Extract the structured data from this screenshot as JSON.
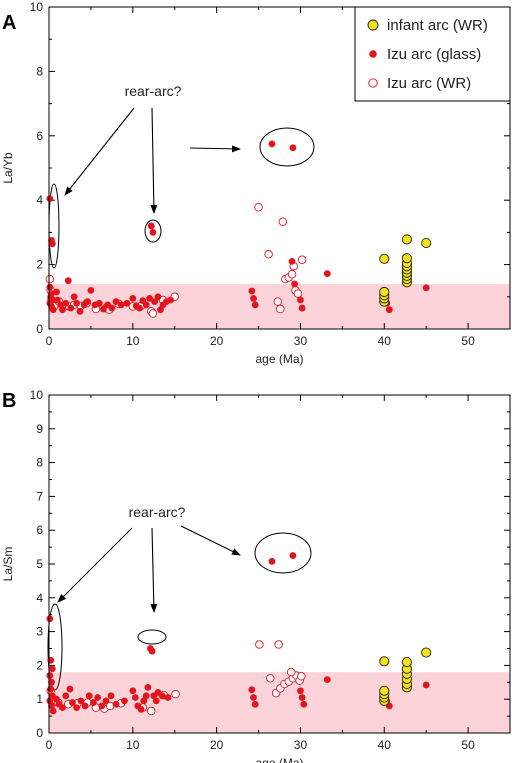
{
  "chart_data": [
    {
      "panel_label": "A",
      "type": "scatter",
      "xlabel": "age (Ma)",
      "ylabel": "La/Yb",
      "xlim": [
        0,
        55
      ],
      "ylim": [
        0,
        10
      ],
      "xticks": [
        0,
        10,
        20,
        30,
        40,
        50
      ],
      "yticks": [
        0,
        2,
        4,
        6,
        8,
        10
      ],
      "shaded_band": [
        0,
        1.4
      ],
      "legend": {
        "position": "top-right",
        "entries": [
          {
            "label": "infant arc (WR)",
            "marker": "circle-yellow"
          },
          {
            "label": "Izu arc (glass)",
            "marker": "dot-red"
          },
          {
            "label": "Izu arc (WR)",
            "marker": "circle-open-red"
          }
        ]
      },
      "annotation": "rear-arc?",
      "series": [
        {
          "name": "infant arc (WR)",
          "points": [
            [
              40,
              0.85
            ],
            [
              40,
              0.95
            ],
            [
              40,
              1.05
            ],
            [
              40,
              1.15
            ],
            [
              40,
              2.18
            ],
            [
              42.7,
              1.45
            ],
            [
              42.7,
              1.55
            ],
            [
              42.7,
              1.65
            ],
            [
              42.7,
              1.75
            ],
            [
              42.7,
              1.85
            ],
            [
              42.7,
              1.95
            ],
            [
              42.7,
              2.05
            ],
            [
              42.7,
              2.2
            ],
            [
              42.7,
              2.78
            ],
            [
              45,
              2.67
            ]
          ]
        },
        {
          "name": "Izu arc (glass)",
          "points": [
            [
              0.1,
              4.05
            ],
            [
              0.3,
              2.75
            ],
            [
              0.4,
              2.65
            ],
            [
              0.1,
              1.3
            ],
            [
              0.3,
              1.1
            ],
            [
              0.2,
              1.0
            ],
            [
              0.4,
              0.9
            ],
            [
              0.1,
              0.8
            ],
            [
              0.3,
              0.7
            ],
            [
              0.5,
              0.6
            ],
            [
              0.9,
              1.15
            ],
            [
              1.0,
              0.9
            ],
            [
              1.4,
              0.75
            ],
            [
              1.6,
              0.6
            ],
            [
              2,
              0.8
            ],
            [
              2.3,
              1.5
            ],
            [
              2.6,
              0.65
            ],
            [
              3,
              1.0
            ],
            [
              3.3,
              0.8
            ],
            [
              3.7,
              0.55
            ],
            [
              4.2,
              0.75
            ],
            [
              4.6,
              0.85
            ],
            [
              5,
              1.2
            ],
            [
              5.5,
              0.75
            ],
            [
              6,
              0.8
            ],
            [
              6.5,
              0.62
            ],
            [
              7,
              0.75
            ],
            [
              7.5,
              0.65
            ],
            [
              8,
              0.85
            ],
            [
              8.6,
              0.75
            ],
            [
              9.3,
              0.8
            ],
            [
              10,
              0.95
            ],
            [
              10.4,
              0.72
            ],
            [
              10.8,
              0.65
            ],
            [
              11.2,
              0.88
            ],
            [
              11.6,
              0.75
            ],
            [
              12,
              0.95
            ],
            [
              12.2,
              3.2
            ],
            [
              12.4,
              3.0
            ],
            [
              12.6,
              0.85
            ],
            [
              13,
              1.0
            ],
            [
              13.3,
              0.6
            ],
            [
              13.6,
              0.75
            ],
            [
              14,
              0.85
            ],
            [
              14.5,
              0.9
            ],
            [
              24.2,
              1.18
            ],
            [
              24.4,
              0.95
            ],
            [
              24.6,
              0.75
            ],
            [
              26.6,
              5.75
            ],
            [
              29.1,
              5.63
            ],
            [
              29,
              2.1
            ],
            [
              29.3,
              1.4
            ],
            [
              30,
              0.9
            ],
            [
              30.2,
              0.65
            ],
            [
              33.2,
              1.72
            ],
            [
              40.3,
              0.8
            ],
            [
              40.6,
              0.6
            ],
            [
              45,
              1.28
            ]
          ]
        },
        {
          "name": "Izu arc (WR)",
          "points": [
            [
              0.1,
              1.55
            ],
            [
              0.2,
              1.2
            ],
            [
              0.3,
              0.9
            ],
            [
              0.6,
              0.7
            ],
            [
              1.2,
              0.85
            ],
            [
              2.4,
              0.7
            ],
            [
              3,
              0.75
            ],
            [
              3.8,
              0.72
            ],
            [
              4.5,
              0.8
            ],
            [
              5.6,
              0.62
            ],
            [
              6.8,
              0.65
            ],
            [
              7.2,
              0.6
            ],
            [
              8.3,
              0.78
            ],
            [
              10,
              0.7
            ],
            [
              11,
              0.72
            ],
            [
              12.2,
              0.55
            ],
            [
              12.4,
              0.48
            ],
            [
              13.6,
              0.9
            ],
            [
              15,
              1.0
            ],
            [
              25,
              3.78
            ],
            [
              26.2,
              2.32
            ],
            [
              27.3,
              0.85
            ],
            [
              27.6,
              0.62
            ],
            [
              27.9,
              3.33
            ],
            [
              28.2,
              1.55
            ],
            [
              28.6,
              1.6
            ],
            [
              29,
              1.7
            ],
            [
              29.2,
              1.95
            ],
            [
              29.4,
              1.2
            ],
            [
              29.7,
              1.1
            ],
            [
              30.2,
              2.15
            ]
          ]
        }
      ]
    },
    {
      "panel_label": "B",
      "type": "scatter",
      "xlabel": "age (Ma)",
      "ylabel": "La/Sm",
      "xlim": [
        0,
        55
      ],
      "ylim": [
        0,
        10
      ],
      "xticks": [
        0,
        10,
        20,
        30,
        40,
        50
      ],
      "yticks": [
        0,
        1,
        2,
        3,
        4,
        5,
        6,
        7,
        8,
        9,
        10
      ],
      "shaded_band": [
        0,
        1.8
      ],
      "annotation": "rear-arc?",
      "series": [
        {
          "name": "infant arc (WR)",
          "points": [
            [
              40,
              0.95
            ],
            [
              40,
              1.05
            ],
            [
              40,
              1.15
            ],
            [
              40,
              1.25
            ],
            [
              40,
              2.12
            ],
            [
              42.7,
              1.35
            ],
            [
              42.7,
              1.45
            ],
            [
              42.7,
              1.6
            ],
            [
              42.7,
              1.75
            ],
            [
              42.7,
              1.9
            ],
            [
              42.7,
              2.1
            ],
            [
              45,
              2.38
            ]
          ]
        },
        {
          "name": "Izu arc (glass)",
          "points": [
            [
              0.1,
              3.38
            ],
            [
              0.2,
              2.15
            ],
            [
              0.4,
              1.9
            ],
            [
              0.1,
              1.7
            ],
            [
              0.3,
              1.5
            ],
            [
              0.2,
              1.3
            ],
            [
              0.4,
              1.1
            ],
            [
              0.1,
              0.95
            ],
            [
              0.3,
              0.8
            ],
            [
              0.5,
              0.65
            ],
            [
              0.9,
              1.0
            ],
            [
              1.2,
              0.85
            ],
            [
              1.6,
              0.75
            ],
            [
              2,
              1.1
            ],
            [
              2.5,
              1.3
            ],
            [
              2.8,
              0.9
            ],
            [
              3.3,
              0.75
            ],
            [
              3.8,
              0.95
            ],
            [
              4.3,
              0.8
            ],
            [
              4.8,
              1.1
            ],
            [
              5.3,
              0.9
            ],
            [
              5.8,
              1.05
            ],
            [
              6.3,
              0.8
            ],
            [
              6.8,
              0.95
            ],
            [
              7.4,
              1.1
            ],
            [
              8,
              0.85
            ],
            [
              9,
              0.95
            ],
            [
              10,
              1.25
            ],
            [
              10.3,
              1.05
            ],
            [
              10.6,
              0.8
            ],
            [
              11,
              0.7
            ],
            [
              11.3,
              0.95
            ],
            [
              11.6,
              1.1
            ],
            [
              11.8,
              1.35
            ],
            [
              12.1,
              2.5
            ],
            [
              12.3,
              2.42
            ],
            [
              12.5,
              1.1
            ],
            [
              12.8,
              0.95
            ],
            [
              13,
              1.2
            ],
            [
              13.5,
              1.1
            ],
            [
              14.2,
              1.05
            ],
            [
              24.2,
              1.28
            ],
            [
              24.4,
              1.05
            ],
            [
              24.6,
              0.85
            ],
            [
              26.6,
              5.08
            ],
            [
              29.1,
              5.25
            ],
            [
              30,
              1.25
            ],
            [
              30.2,
              1.05
            ],
            [
              30.4,
              0.85
            ],
            [
              33.2,
              1.58
            ],
            [
              40.3,
              0.95
            ],
            [
              40.6,
              0.8
            ],
            [
              45,
              1.42
            ]
          ]
        },
        {
          "name": "Izu arc (WR)",
          "points": [
            [
              0.2,
              1.25
            ],
            [
              0.5,
              1.0
            ],
            [
              1.1,
              0.9
            ],
            [
              2.3,
              0.85
            ],
            [
              3.4,
              0.88
            ],
            [
              4.6,
              0.9
            ],
            [
              5.6,
              0.75
            ],
            [
              6.6,
              0.72
            ],
            [
              7.3,
              0.8
            ],
            [
              8.6,
              0.88
            ],
            [
              11.2,
              0.75
            ],
            [
              12.2,
              0.65
            ],
            [
              13.7,
              1.12
            ],
            [
              15.1,
              1.15
            ],
            [
              25.1,
              2.62
            ],
            [
              27.4,
              2.62
            ],
            [
              26.4,
              1.62
            ],
            [
              27.1,
              1.18
            ],
            [
              27.6,
              1.32
            ],
            [
              28.1,
              1.45
            ],
            [
              28.6,
              1.52
            ],
            [
              29.1,
              1.62
            ],
            [
              29.5,
              1.7
            ],
            [
              29.9,
              1.55
            ],
            [
              28.9,
              1.8
            ],
            [
              30.1,
              1.68
            ]
          ]
        }
      ]
    }
  ]
}
